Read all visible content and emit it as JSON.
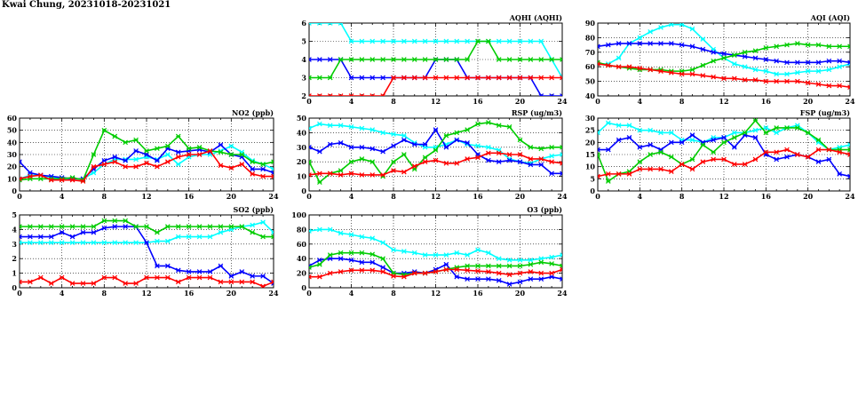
{
  "page": {
    "title": "Kwai Chung, 20231018-20231021"
  },
  "series_colors": [
    "#00ffff",
    "#0000ff",
    "#00cc00",
    "#ff0000"
  ],
  "chart_data": [
    {
      "id": "aqhi",
      "type": "line",
      "title": "AQHI (AQHI)",
      "x_ticks": [
        0,
        4,
        8,
        12,
        16,
        20,
        24
      ],
      "ylim": [
        2,
        6
      ],
      "y_ticks": [
        2,
        3,
        4,
        5,
        6
      ],
      "grid": true,
      "series": [
        {
          "values": [
            6,
            6,
            6,
            6,
            5,
            5,
            5,
            5,
            5,
            5,
            5,
            5,
            5,
            5,
            5,
            5,
            5,
            5,
            5,
            5,
            5,
            5,
            5,
            4,
            3
          ]
        },
        {
          "values": [
            4,
            4,
            4,
            4,
            3,
            3,
            3,
            3,
            3,
            3,
            3,
            3,
            4,
            4,
            4,
            3,
            3,
            3,
            3,
            3,
            3,
            3,
            2,
            2,
            2
          ]
        },
        {
          "values": [
            3,
            3,
            3,
            4,
            4,
            4,
            4,
            4,
            4,
            4,
            4,
            4,
            4,
            4,
            4,
            4,
            5,
            5,
            4,
            4,
            4,
            4,
            4,
            4,
            4
          ]
        },
        {
          "values": [
            2,
            2,
            2,
            2,
            2,
            2,
            2,
            2,
            3,
            3,
            3,
            3,
            3,
            3,
            3,
            3,
            3,
            3,
            3,
            3,
            3,
            3,
            3,
            3,
            3
          ]
        }
      ]
    },
    {
      "id": "aqi",
      "type": "line",
      "title": "AQI (AQI)",
      "x_ticks": [
        0,
        4,
        8,
        12,
        16,
        20,
        24
      ],
      "ylim": [
        40,
        90
      ],
      "y_ticks": [
        40,
        50,
        60,
        70,
        80,
        90
      ],
      "grid": true,
      "series": [
        {
          "values": [
            62,
            62,
            66,
            76,
            80,
            84,
            87,
            89,
            89,
            86,
            79,
            72,
            66,
            62,
            60,
            58,
            57,
            55,
            55,
            56,
            57,
            57,
            58,
            60,
            62
          ]
        },
        {
          "values": [
            74,
            75,
            76,
            76,
            76,
            76,
            76,
            76,
            75,
            74,
            72,
            70,
            69,
            68,
            67,
            66,
            65,
            64,
            63,
            63,
            63,
            63,
            64,
            64,
            63
          ]
        },
        {
          "values": [
            63,
            61,
            60,
            59,
            58,
            58,
            58,
            57,
            57,
            58,
            61,
            64,
            66,
            68,
            70,
            71,
            73,
            74,
            75,
            76,
            75,
            75,
            74,
            74,
            74
          ]
        },
        {
          "values": [
            62,
            61,
            60,
            60,
            59,
            58,
            57,
            56,
            55,
            55,
            54,
            53,
            52,
            52,
            51,
            51,
            50,
            50,
            50,
            50,
            49,
            48,
            47,
            47,
            46
          ]
        }
      ]
    },
    {
      "id": "no2",
      "type": "line",
      "title": "NO2 (ppb)",
      "x_ticks": [
        0,
        4,
        8,
        12,
        16,
        20,
        24
      ],
      "ylim": [
        0,
        60
      ],
      "y_ticks": [
        0,
        10,
        20,
        30,
        40,
        50,
        60
      ],
      "grid": true,
      "series": [
        {
          "values": [
            10,
            13,
            13,
            11,
            10,
            10,
            10,
            15,
            22,
            26,
            26,
            26,
            28,
            26,
            30,
            22,
            28,
            30,
            30,
            33,
            37,
            32,
            25,
            22,
            18
          ]
        },
        {
          "values": [
            24,
            15,
            13,
            12,
            11,
            10,
            10,
            18,
            25,
            28,
            25,
            33,
            30,
            25,
            35,
            32,
            33,
            34,
            32,
            38,
            30,
            28,
            18,
            18,
            15
          ]
        },
        {
          "values": [
            9,
            10,
            10,
            10,
            10,
            11,
            9,
            30,
            50,
            45,
            40,
            42,
            33,
            35,
            37,
            45,
            35,
            36,
            33,
            32,
            30,
            30,
            24,
            22,
            24
          ]
        },
        {
          "values": [
            10,
            12,
            13,
            9,
            9,
            9,
            8,
            20,
            22,
            24,
            20,
            20,
            23,
            20,
            24,
            28,
            30,
            30,
            33,
            21,
            19,
            22,
            14,
            12,
            12
          ]
        }
      ]
    },
    {
      "id": "rsp",
      "type": "line",
      "title": "RSP (ug/m3)",
      "x_ticks": [
        0,
        4,
        8,
        12,
        16,
        20,
        24
      ],
      "ylim": [
        0,
        50
      ],
      "y_ticks": [
        0,
        10,
        20,
        30,
        40,
        50
      ],
      "grid": true,
      "series": [
        {
          "values": [
            43,
            46,
            45,
            45,
            44,
            43,
            42,
            40,
            39,
            38,
            33,
            30,
            30,
            32,
            35,
            32,
            31,
            30,
            28,
            22,
            20,
            19,
            22,
            24,
            25
          ]
        },
        {
          "values": [
            30,
            27,
            32,
            33,
            30,
            30,
            29,
            27,
            31,
            35,
            32,
            32,
            42,
            30,
            35,
            33,
            25,
            21,
            20,
            21,
            20,
            18,
            18,
            12,
            12
          ]
        },
        {
          "values": [
            20,
            6,
            12,
            14,
            20,
            22,
            20,
            10,
            20,
            25,
            15,
            23,
            28,
            38,
            40,
            42,
            46,
            47,
            45,
            44,
            35,
            30,
            29,
            30,
            30
          ]
        },
        {
          "values": [
            11,
            12,
            12,
            11,
            12,
            11,
            11,
            11,
            14,
            13,
            17,
            20,
            21,
            19,
            19,
            22,
            23,
            26,
            26,
            25,
            25,
            22,
            22,
            20,
            19
          ]
        }
      ]
    },
    {
      "id": "fsp",
      "type": "line",
      "title": "FSP (ug/m3)",
      "x_ticks": [
        0,
        4,
        8,
        12,
        16,
        20,
        24
      ],
      "ylim": [
        0,
        30
      ],
      "y_ticks": [
        0,
        5,
        10,
        15,
        20,
        25,
        30
      ],
      "grid": true,
      "series": [
        {
          "values": [
            24,
            28,
            27,
            27,
            25,
            25,
            24,
            24,
            21,
            21,
            20,
            22,
            22,
            24,
            24,
            25,
            26,
            24,
            26,
            27,
            24,
            20,
            17,
            18,
            19
          ]
        },
        {
          "values": [
            17,
            17,
            21,
            22,
            18,
            19,
            17,
            20,
            20,
            23,
            20,
            21,
            22,
            18,
            23,
            22,
            15,
            13,
            14,
            15,
            14,
            12,
            13,
            7,
            6
          ]
        },
        {
          "values": [
            15,
            4,
            7,
            8,
            12,
            15,
            16,
            14,
            11,
            13,
            19,
            16,
            20,
            22,
            24,
            29,
            24,
            26,
            26,
            26,
            24,
            21,
            17,
            17,
            17
          ]
        },
        {
          "values": [
            6,
            7,
            7,
            7,
            9,
            9,
            9,
            8,
            11,
            9,
            12,
            13,
            13,
            11,
            11,
            13,
            16,
            16,
            17,
            15,
            14,
            17,
            17,
            16,
            15
          ]
        }
      ]
    },
    {
      "id": "so2",
      "type": "line",
      "title": "SO2 (ppb)",
      "x_ticks": [
        0,
        4,
        8,
        12,
        16,
        20,
        24
      ],
      "ylim": [
        0,
        5
      ],
      "y_ticks": [
        0,
        1,
        2,
        3,
        4,
        5
      ],
      "grid": true,
      "series": [
        {
          "values": [
            3.1,
            3.1,
            3.1,
            3.1,
            3.1,
            3.1,
            3.1,
            3.1,
            3.1,
            3.1,
            3.1,
            3.1,
            3.1,
            3.2,
            3.2,
            3.5,
            3.5,
            3.5,
            3.5,
            3.8,
            4.0,
            4.2,
            4.3,
            4.5,
            3.8
          ]
        },
        {
          "values": [
            3.5,
            3.5,
            3.5,
            3.5,
            3.8,
            3.5,
            3.8,
            3.8,
            4.1,
            4.2,
            4.2,
            4.2,
            3.1,
            1.5,
            1.5,
            1.2,
            1.1,
            1.1,
            1.1,
            1.5,
            0.8,
            1.1,
            0.8,
            0.8,
            0.3
          ]
        },
        {
          "values": [
            4.2,
            4.2,
            4.2,
            4.2,
            4.2,
            4.2,
            4.2,
            4.2,
            4.6,
            4.6,
            4.6,
            4.2,
            4.2,
            3.8,
            4.2,
            4.2,
            4.2,
            4.2,
            4.2,
            4.2,
            4.2,
            4.2,
            3.8,
            3.5,
            3.5
          ]
        },
        {
          "values": [
            0.4,
            0.4,
            0.7,
            0.3,
            0.7,
            0.3,
            0.3,
            0.3,
            0.7,
            0.7,
            0.3,
            0.3,
            0.7,
            0.7,
            0.7,
            0.4,
            0.7,
            0.7,
            0.7,
            0.4,
            0.4,
            0.4,
            0.4,
            0.1,
            0.4
          ]
        }
      ]
    },
    {
      "id": "o3",
      "type": "line",
      "title": "O3 (ppb)",
      "x_ticks": [
        0,
        4,
        8,
        12,
        16,
        20,
        24
      ],
      "ylim": [
        0,
        100
      ],
      "y_ticks": [
        0,
        20,
        40,
        60,
        80,
        100
      ],
      "grid": true,
      "series": [
        {
          "values": [
            78,
            80,
            80,
            75,
            73,
            70,
            68,
            62,
            52,
            50,
            48,
            45,
            45,
            45,
            48,
            45,
            52,
            48,
            40,
            38,
            38,
            38,
            40,
            42,
            45
          ]
        },
        {
          "values": [
            30,
            38,
            40,
            40,
            38,
            35,
            35,
            28,
            20,
            20,
            22,
            20,
            25,
            32,
            15,
            12,
            12,
            12,
            10,
            5,
            8,
            12,
            12,
            15,
            12
          ]
        },
        {
          "values": [
            28,
            32,
            45,
            48,
            48,
            48,
            46,
            40,
            20,
            18,
            20,
            20,
            22,
            25,
            28,
            30,
            30,
            30,
            30,
            30,
            30,
            32,
            35,
            33,
            30
          ]
        },
        {
          "values": [
            15,
            15,
            20,
            22,
            24,
            24,
            24,
            22,
            16,
            15,
            20,
            20,
            22,
            25,
            25,
            24,
            23,
            22,
            20,
            18,
            20,
            22,
            20,
            20,
            25
          ]
        }
      ]
    }
  ]
}
